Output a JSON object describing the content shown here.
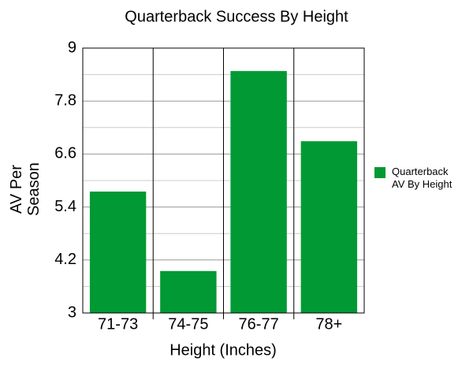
{
  "chart_data": {
    "type": "bar",
    "title": "Quarterback Success By Height",
    "x_label": "Height (Inches)",
    "y_label": "AV Per Season",
    "categories": [
      "71-73",
      "74-75",
      "76-77",
      "78+"
    ],
    "series": [
      {
        "name": "Quarterback AV By Height",
        "color": "#009933",
        "values": [
          5.75,
          3.95,
          8.48,
          6.89
        ]
      }
    ],
    "ylim": [
      3,
      9
    ],
    "yticks": [
      3,
      4.2,
      5.4,
      6.6,
      7.8,
      9
    ],
    "minor_yticks": [
      3.6,
      4.8,
      6,
      7.2,
      8.4
    ],
    "grid": true,
    "legend": "right"
  }
}
